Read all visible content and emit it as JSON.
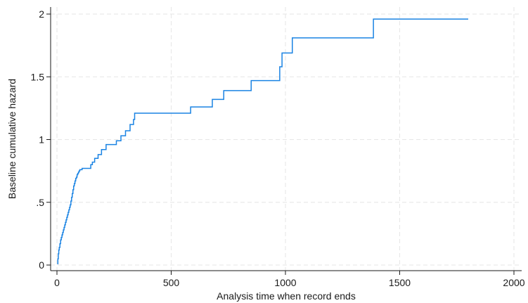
{
  "chart_data": {
    "type": "line",
    "title": "",
    "xlabel": "Analysis time when record ends",
    "ylabel": "Baseline cumulative hazard",
    "xlim": [
      0,
      2000
    ],
    "ylim": [
      0,
      2
    ],
    "xticks": [
      {
        "value": 0,
        "label": "0"
      },
      {
        "value": 500,
        "label": "500"
      },
      {
        "value": 1000,
        "label": "1000"
      },
      {
        "value": 1500,
        "label": "1500"
      },
      {
        "value": 2000,
        "label": "2000"
      }
    ],
    "yticks": [
      {
        "value": 0,
        "label": "0"
      },
      {
        "value": 0.5,
        "label": ".5"
      },
      {
        "value": 1,
        "label": "1"
      },
      {
        "value": 1.5,
        "label": "1.5"
      },
      {
        "value": 2,
        "label": "2"
      }
    ],
    "grid": true,
    "line_color": "#1a83e3",
    "series": [
      {
        "step": true,
        "x": [
          2,
          4,
          6,
          8,
          10,
          13,
          16,
          19,
          22,
          25,
          28,
          31,
          34,
          37,
          40,
          43,
          46,
          49,
          52,
          55,
          58,
          61,
          64,
          67,
          70,
          73,
          76,
          79,
          82,
          85,
          88,
          91,
          94,
          97,
          100,
          105,
          110,
          148,
          155,
          165,
          180,
          195,
          215,
          260,
          280,
          300,
          320,
          335,
          340,
          585,
          680,
          730,
          850,
          975,
          985,
          1000,
          1030,
          1385,
          1800
        ],
        "y": [
          0.01,
          0.05,
          0.09,
          0.12,
          0.14,
          0.17,
          0.2,
          0.22,
          0.24,
          0.26,
          0.28,
          0.3,
          0.32,
          0.34,
          0.36,
          0.38,
          0.4,
          0.42,
          0.44,
          0.46,
          0.48,
          0.51,
          0.54,
          0.57,
          0.6,
          0.63,
          0.65,
          0.67,
          0.69,
          0.7,
          0.72,
          0.73,
          0.74,
          0.75,
          0.76,
          0.76,
          0.77,
          0.8,
          0.82,
          0.85,
          0.88,
          0.92,
          0.96,
          0.99,
          1.03,
          1.07,
          1.12,
          1.16,
          1.21,
          1.26,
          1.32,
          1.39,
          1.47,
          1.58,
          1.69,
          1.69,
          1.81,
          1.96,
          1.96
        ]
      }
    ]
  }
}
